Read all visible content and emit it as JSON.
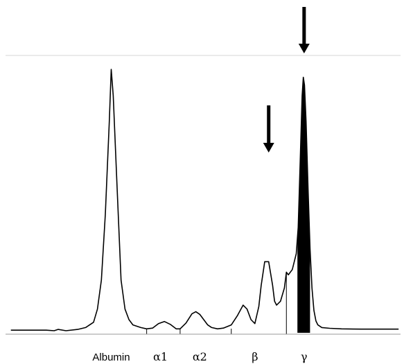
{
  "chart_data": {
    "type": "line",
    "title": "",
    "xlabel": "",
    "ylabel": "",
    "xlim": [
      0,
      100
    ],
    "ylim": [
      0,
      100
    ],
    "grid": false,
    "fractions": [
      {
        "label": "Albumin",
        "center": 26.5
      },
      {
        "label": "α1",
        "center": 39.0
      },
      {
        "label": "α2",
        "center": 49.0
      },
      {
        "label": "β",
        "center": 63.0
      },
      {
        "label": "γ",
        "center": 75.5
      }
    ],
    "boundaries": [
      35.5,
      44.0,
      57.0,
      71.0
    ],
    "series": [
      {
        "x": [
          1,
          5,
          10,
          12,
          13,
          15,
          18,
          20,
          22,
          23,
          24,
          25,
          26,
          26.5,
          27,
          28,
          29,
          30,
          31,
          32,
          34,
          35.5,
          37,
          38.5,
          40,
          41.5,
          43,
          44,
          45.5,
          47,
          48,
          49,
          50,
          51,
          52,
          53.5,
          55,
          57,
          58.5,
          60,
          61,
          62,
          63,
          64,
          64.6,
          65.5,
          66.5,
          67.5,
          68,
          68.5,
          69.5,
          70.5,
          71,
          71.5,
          72.5,
          73.5,
          74,
          74.5,
          75,
          75.3,
          75.6,
          76,
          76.5,
          77,
          77.5,
          78,
          78.5,
          79,
          80,
          82,
          85,
          90,
          95,
          99.5
        ],
        "y": [
          1,
          1,
          1,
          0.8,
          1.3,
          0.8,
          1.3,
          2,
          4,
          9,
          20,
          45,
          80,
          100,
          90,
          55,
          20,
          9,
          5,
          3,
          2,
          1.5,
          1.8,
          3.5,
          4.3,
          3.2,
          1.5,
          1.5,
          3.7,
          7.2,
          8,
          7,
          5,
          3,
          2,
          1.5,
          1.8,
          3,
          6.4,
          10.5,
          9,
          5,
          3.5,
          10,
          18,
          27,
          27,
          18,
          12,
          10.5,
          12,
          17,
          23,
          22,
          24,
          30,
          40,
          65,
          90,
          97,
          94,
          80,
          55,
          32,
          17,
          8.5,
          4.5,
          3,
          2,
          1.7,
          1.5,
          1.4,
          1.4,
          1.4
        ]
      }
    ],
    "annotations": [
      {
        "type": "arrow",
        "x": 75.5,
        "size": "large"
      },
      {
        "type": "arrow",
        "x": 66.5,
        "size": "small"
      }
    ]
  },
  "colors": {
    "trace": "#000000",
    "gamma_fill": "#000000",
    "baseline": "#9a9a9a",
    "top_rule": "#d6d6d6"
  }
}
